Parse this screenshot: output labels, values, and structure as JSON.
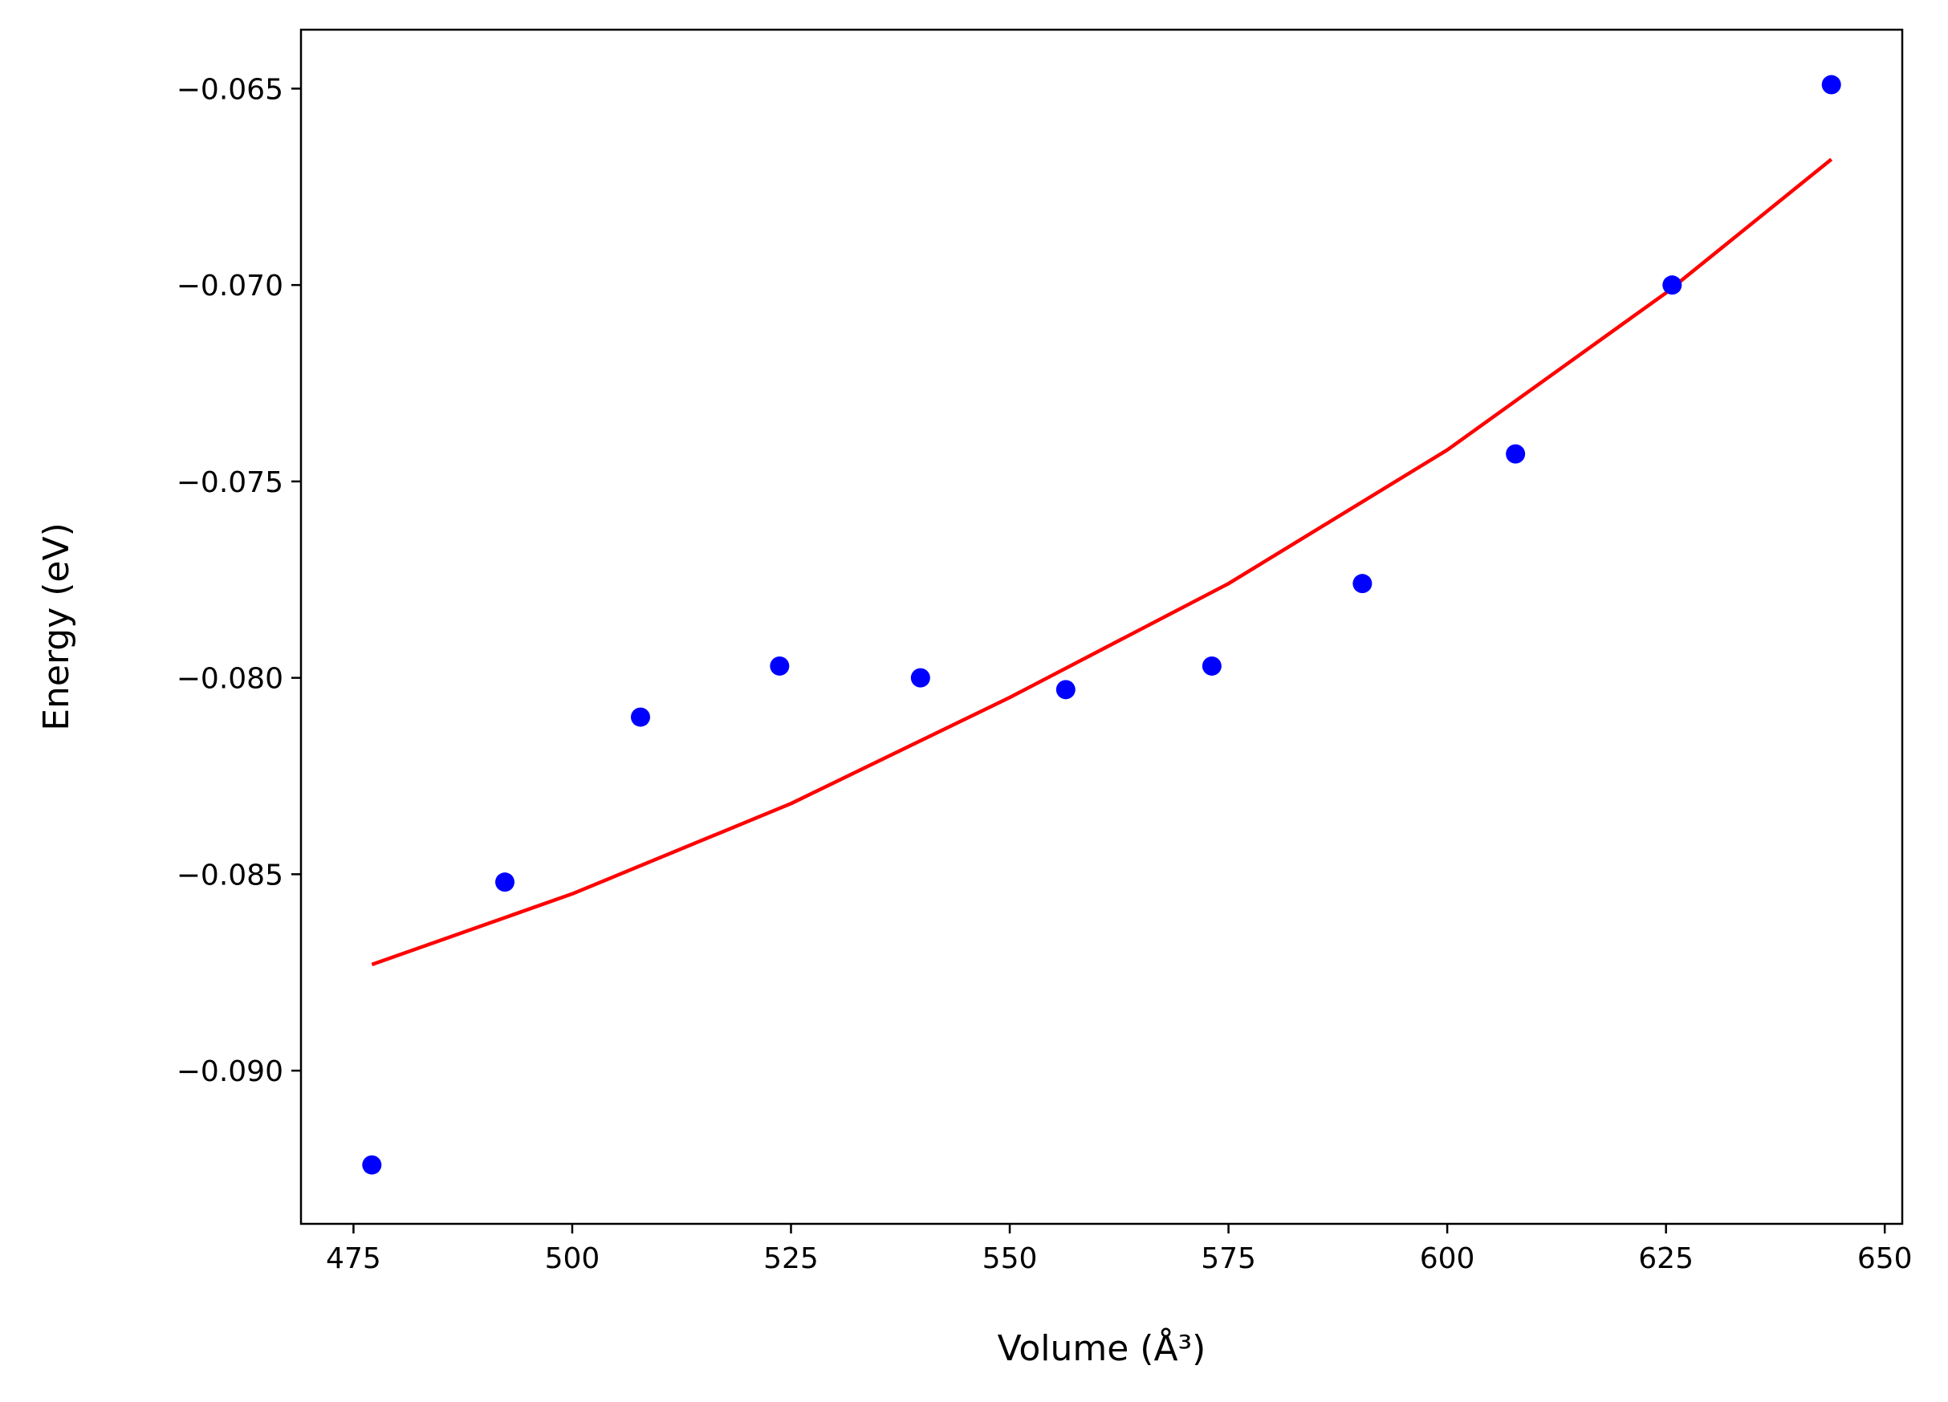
{
  "chart_data": {
    "type": "scatter",
    "xlabel": "Volume (Å³)",
    "ylabel": "Energy (eV)",
    "xlim": [
      469,
      652
    ],
    "ylim": [
      -0.0939,
      -0.0635
    ],
    "xticks": [
      475,
      500,
      525,
      550,
      575,
      600,
      625,
      650
    ],
    "yticks": [
      -0.065,
      -0.07,
      -0.075,
      -0.08,
      -0.085,
      -0.09
    ],
    "xtick_labels": [
      "475",
      "500",
      "525",
      "550",
      "575",
      "600",
      "625",
      "650"
    ],
    "ytick_labels": [
      "−0.065",
      "−0.070",
      "−0.075",
      "−0.080",
      "−0.085",
      "−0.090"
    ],
    "grid": false,
    "series": [
      {
        "kind": "points",
        "color": "#0000ff",
        "x": [
          477.1,
          492.3,
          507.8,
          523.7,
          539.8,
          556.4,
          573.1,
          590.3,
          607.8,
          625.7,
          643.9
        ],
        "y": [
          -0.0924,
          -0.0852,
          -0.081,
          -0.0797,
          -0.08,
          -0.0803,
          -0.0797,
          -0.0776,
          -0.0743,
          -0.07,
          -0.0649
        ]
      },
      {
        "kind": "fit-line",
        "color": "#ff0000",
        "x": [
          477.1,
          500,
          525,
          550,
          575,
          600,
          625,
          643.9
        ],
        "y": [
          -0.0873,
          -0.0855,
          -0.0832,
          -0.0805,
          -0.0776,
          -0.0742,
          -0.0702,
          -0.0668
        ]
      }
    ]
  }
}
